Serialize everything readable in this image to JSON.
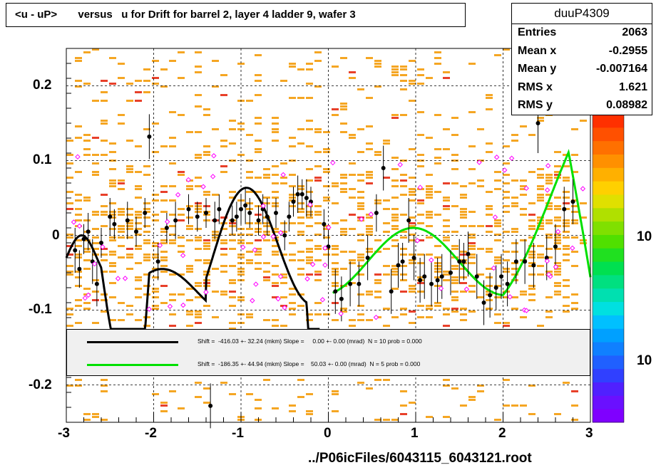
{
  "chart_data": {
    "type": "scatter",
    "title": "<u - uP>       versus   u for Drift for barrel 2, layer 4 ladder 9, wafer 3",
    "xlim": [
      -3,
      3
    ],
    "ylim": [
      -0.25,
      0.25
    ],
    "x_ticks": [
      "-3",
      "-2",
      "-1",
      "0",
      "1",
      "2",
      "3"
    ],
    "y_ticks": [
      "0.2",
      "0.1",
      "0",
      "-0.1",
      "-0.2"
    ],
    "y_tick_values": [
      0.2,
      0.1,
      0,
      -0.1,
      -0.2
    ],
    "z_ticks": [
      "10",
      "10"
    ],
    "grid": true,
    "legend_placement": "bottom",
    "profile_points": [
      [
        -2.9,
        -0.02,
        0.03
      ],
      [
        -2.85,
        -0.045,
        0.025
      ],
      [
        -2.8,
        -0.005,
        0.02
      ],
      [
        -2.75,
        0.005,
        0.025
      ],
      [
        -2.7,
        -0.035,
        0.03
      ],
      [
        -2.65,
        -0.065,
        0.03
      ],
      [
        -2.6,
        -0.01,
        0.02
      ],
      [
        -2.5,
        0.025,
        0.025
      ],
      [
        -2.45,
        0.015,
        0.02
      ],
      [
        -2.3,
        0.02,
        0.025
      ],
      [
        -2.2,
        0.005,
        0.02
      ],
      [
        -2.1,
        0.03,
        0.02
      ],
      [
        -2.05,
        0.132,
        0.03
      ],
      [
        -1.95,
        -0.035,
        0.025
      ],
      [
        -1.85,
        0.01,
        0.02
      ],
      [
        -1.75,
        0.02,
        0.025
      ],
      [
        -1.6,
        0.035,
        0.02
      ],
      [
        -1.5,
        0.025,
        0.02
      ],
      [
        -1.4,
        0.03,
        0.02
      ],
      [
        -1.35,
        -0.228,
        0.03
      ],
      [
        -1.3,
        0.02,
        0.025
      ],
      [
        -1.25,
        0.035,
        0.02
      ],
      [
        -1.1,
        0.02,
        0.02
      ],
      [
        -1.05,
        0.025,
        0.02
      ],
      [
        -1.0,
        0.035,
        0.02
      ],
      [
        -0.95,
        0.04,
        0.025
      ],
      [
        -0.9,
        0.03,
        0.02
      ],
      [
        -0.8,
        0.02,
        0.02
      ],
      [
        -0.75,
        0.035,
        0.02
      ],
      [
        -0.7,
        0.025,
        0.025
      ],
      [
        -0.6,
        0.03,
        0.02
      ],
      [
        -0.5,
        0.0,
        0.02
      ],
      [
        -0.45,
        0.025,
        0.02
      ],
      [
        -0.4,
        0.045,
        0.02
      ],
      [
        -0.35,
        0.055,
        0.025
      ],
      [
        -0.3,
        0.055,
        0.02
      ],
      [
        -0.25,
        0.05,
        0.025
      ],
      [
        -0.2,
        0.045,
        0.02
      ],
      [
        -0.05,
        0.015,
        0.02
      ],
      [
        0.0,
        -0.015,
        0.03
      ],
      [
        0.08,
        -0.075,
        0.03
      ],
      [
        0.15,
        -0.085,
        0.03
      ],
      [
        0.25,
        -0.065,
        0.03
      ],
      [
        0.35,
        -0.065,
        0.03
      ],
      [
        0.45,
        -0.03,
        0.03
      ],
      [
        0.55,
        0.03,
        0.025
      ],
      [
        0.63,
        0.09,
        0.03
      ],
      [
        0.72,
        -0.075,
        0.03
      ],
      [
        0.8,
        -0.04,
        0.03
      ],
      [
        0.85,
        -0.035,
        0.025
      ],
      [
        0.92,
        0.02,
        0.03
      ],
      [
        0.98,
        -0.03,
        0.03
      ],
      [
        1.05,
        -0.06,
        0.03
      ],
      [
        1.1,
        -0.055,
        0.03
      ],
      [
        1.18,
        -0.065,
        0.03
      ],
      [
        1.25,
        -0.06,
        0.03
      ],
      [
        1.3,
        -0.055,
        0.03
      ],
      [
        1.4,
        -0.05,
        0.03
      ],
      [
        1.5,
        -0.035,
        0.03
      ],
      [
        1.55,
        -0.035,
        0.025
      ],
      [
        1.6,
        -0.025,
        0.03
      ],
      [
        1.7,
        -0.055,
        0.03
      ],
      [
        1.78,
        -0.09,
        0.03
      ],
      [
        1.85,
        -0.08,
        0.03
      ],
      [
        1.92,
        -0.07,
        0.03
      ],
      [
        1.98,
        -0.055,
        0.03
      ],
      [
        2.05,
        -0.065,
        0.03
      ],
      [
        2.15,
        -0.035,
        0.03
      ],
      [
        2.25,
        -0.035,
        0.03
      ],
      [
        2.35,
        -0.04,
        0.03
      ],
      [
        2.4,
        0.15,
        0.04
      ],
      [
        2.5,
        -0.03,
        0.03
      ],
      [
        2.6,
        -0.015,
        0.03
      ],
      [
        2.7,
        0.035,
        0.03
      ],
      [
        2.8,
        0.045,
        0.03
      ]
    ],
    "fit_curves": [
      {
        "color": "#000000",
        "x_range": [
          -3.0,
          -0.1
        ]
      },
      {
        "color": "#00e000",
        "x_range": [
          0.05,
          3.0
        ]
      }
    ],
    "colors": {
      "black_fit": "#000000",
      "green_fit": "#00e000",
      "bins_orange": "#f5a623",
      "bins_red": "#e8402a",
      "open_markers": "#ff00ff"
    }
  },
  "stats": {
    "name": "duuP4309",
    "rows": [
      {
        "key": "Entries",
        "value": "2063"
      },
      {
        "key": "Mean x",
        "value": "-0.2955"
      },
      {
        "key": "Mean y",
        "value": "-0.007164"
      },
      {
        "key": "RMS x",
        "value": "1.621"
      },
      {
        "key": "RMS y",
        "value": "0.08982"
      }
    ]
  },
  "legend": {
    "entries": [
      {
        "color": "#000000",
        "text": "Shift =  -416.03 +- 32.24 (mkm) Slope =     0.00 +- 0.00 (mrad)  N = 10 prob = 0.000"
      },
      {
        "color": "#00e000",
        "text": "Shift =  -186.35 +- 44.94 (mkm) Slope =    50.03 +- 0.00 (mrad)  N = 5 prob = 0.000"
      }
    ]
  },
  "footer": "../P06icFiles/6043115_6043121.root"
}
